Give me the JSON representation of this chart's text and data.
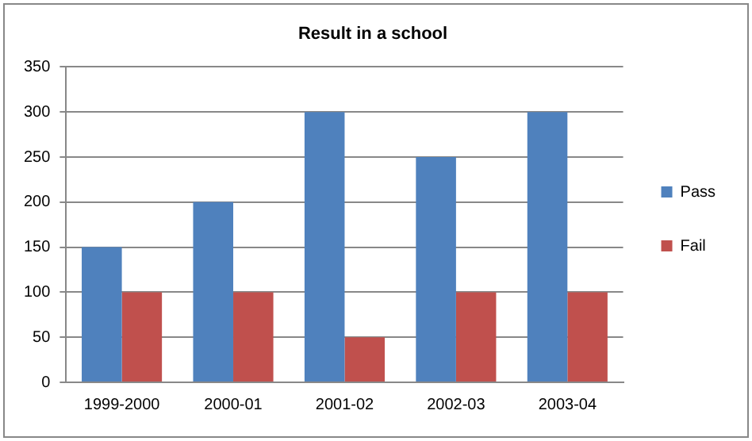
{
  "chart_data": {
    "type": "bar",
    "title": "Result in a school",
    "categories": [
      "1999-2000",
      "2000-01",
      "2001-02",
      "2002-03",
      "2003-04"
    ],
    "series": [
      {
        "name": "Pass",
        "color": "#4f81bd",
        "values": [
          150,
          200,
          300,
          250,
          300
        ]
      },
      {
        "name": "Fail",
        "color": "#c0504d",
        "values": [
          100,
          100,
          50,
          100,
          100
        ]
      }
    ],
    "ylim": [
      0,
      350
    ],
    "yticks": [
      0,
      50,
      100,
      150,
      200,
      250,
      300,
      350
    ],
    "grid": "y",
    "legend": "right"
  }
}
